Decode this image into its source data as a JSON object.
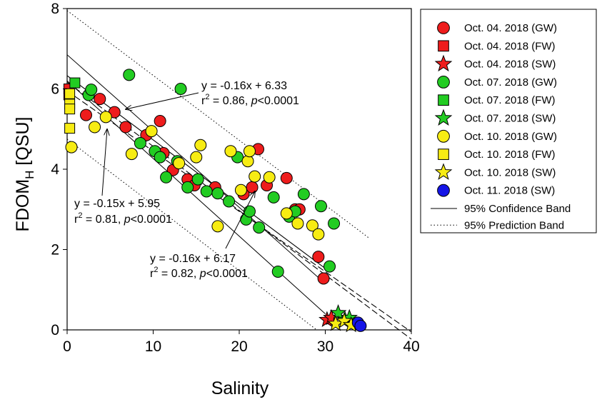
{
  "chart_data": {
    "type": "scatter",
    "xlabel": "Salinity",
    "ylabel_main": "FDOM",
    "ylabel_sub": "H",
    "ylabel_unit": " [QSU]",
    "xlim": [
      0,
      40
    ],
    "ylim": [
      0,
      8
    ],
    "xticks": [
      0,
      10,
      20,
      30,
      40
    ],
    "yticks": [
      0,
      2,
      4,
      6,
      8
    ],
    "grid": false,
    "legend_position": "right",
    "series": [
      {
        "name": "Oct. 04. 2018 (GW)",
        "marker": "circle",
        "color": "#ee1c1c",
        "points": [
          [
            2.2,
            5.35
          ],
          [
            3.8,
            5.75
          ],
          [
            5.5,
            5.42
          ],
          [
            6.8,
            5.05
          ],
          [
            9.2,
            4.85
          ],
          [
            10.8,
            5.2
          ],
          [
            11.2,
            4.4
          ],
          [
            12.3,
            3.98
          ],
          [
            14,
            3.75
          ],
          [
            14.8,
            3.6
          ],
          [
            17.2,
            3.55
          ],
          [
            20.5,
            3.38
          ],
          [
            21.5,
            3.55
          ],
          [
            22.2,
            4.5
          ],
          [
            23.2,
            3.6
          ],
          [
            25.5,
            3.78
          ],
          [
            26.5,
            3.0
          ],
          [
            27.0,
            3.0
          ],
          [
            29.2,
            1.82
          ],
          [
            29.8,
            1.28
          ]
        ]
      },
      {
        "name": "Oct. 04. 2018 (FW)",
        "marker": "square",
        "color": "#ee1c1c",
        "points": [
          [
            0.2,
            6.0
          ],
          [
            0.2,
            5.85
          ]
        ]
      },
      {
        "name": "Oct. 04. 2018 (SW)",
        "marker": "star",
        "color": "#ee1c1c",
        "points": [
          [
            30.2,
            0.25
          ],
          [
            30.7,
            0.3
          ]
        ]
      },
      {
        "name": "Oct. 07. 2018 (GW)",
        "marker": "circle",
        "color": "#22cc22",
        "points": [
          [
            2.5,
            5.85
          ],
          [
            2.8,
            5.98
          ],
          [
            7.2,
            6.35
          ],
          [
            8.5,
            4.65
          ],
          [
            10.2,
            4.45
          ],
          [
            10.8,
            4.3
          ],
          [
            11.5,
            3.8
          ],
          [
            12.8,
            4.2
          ],
          [
            13.2,
            6.0
          ],
          [
            14,
            3.55
          ],
          [
            15.2,
            3.75
          ],
          [
            16.2,
            3.45
          ],
          [
            17.5,
            3.4
          ],
          [
            18.8,
            3.2
          ],
          [
            19.8,
            4.3
          ],
          [
            20.8,
            2.75
          ],
          [
            21.2,
            2.95
          ],
          [
            22.3,
            2.55
          ],
          [
            24,
            3.3
          ],
          [
            24.5,
            1.45
          ],
          [
            25.8,
            2.82
          ],
          [
            26.5,
            2.95
          ],
          [
            27.5,
            3.38
          ],
          [
            29.5,
            3.08
          ],
          [
            30.5,
            1.58
          ],
          [
            31,
            2.65
          ]
        ]
      },
      {
        "name": "Oct. 07. 2018 (FW)",
        "marker": "square",
        "color": "#22cc22",
        "points": [
          [
            0.9,
            6.15
          ]
        ]
      },
      {
        "name": "Oct. 07. 2018 (SW)",
        "marker": "star",
        "color": "#22cc22",
        "points": [
          [
            31.5,
            0.42
          ],
          [
            32.3,
            0.25
          ],
          [
            32.8,
            0.3
          ]
        ]
      },
      {
        "name": "Oct. 10. 2018 (GW)",
        "marker": "circle",
        "color": "#f7ec13",
        "points": [
          [
            0.5,
            4.55
          ],
          [
            3.2,
            5.05
          ],
          [
            4.5,
            5.3
          ],
          [
            7.5,
            4.38
          ],
          [
            9.8,
            4.95
          ],
          [
            13,
            4.15
          ],
          [
            15.5,
            4.6
          ],
          [
            17.5,
            2.58
          ],
          [
            19,
            4.45
          ],
          [
            20.2,
            3.48
          ],
          [
            21,
            4.2
          ],
          [
            21.2,
            4.45
          ],
          [
            21.8,
            3.82
          ],
          [
            23.5,
            3.8
          ],
          [
            25.5,
            2.9
          ],
          [
            26.8,
            2.65
          ],
          [
            28.5,
            2.6
          ],
          [
            29.2,
            2.38
          ],
          [
            15,
            4.3
          ]
        ]
      },
      {
        "name": "Oct. 10. 2018 (FW)",
        "marker": "square",
        "color": "#f7ec13",
        "points": [
          [
            0.3,
            5.88
          ],
          [
            0.3,
            5.62
          ],
          [
            0.3,
            5.5
          ],
          [
            0.3,
            5.02
          ]
        ]
      },
      {
        "name": "Oct. 10. 2018 (SW)",
        "marker": "star",
        "color": "#f7ec13",
        "points": [
          [
            31.2,
            0.15
          ],
          [
            32.2,
            0.22
          ],
          [
            33,
            0.12
          ]
        ]
      },
      {
        "name": "Oct. 11. 2018 (SW)",
        "marker": "circle",
        "color": "#1515e6",
        "points": [
          [
            33.8,
            0.18
          ],
          [
            34.1,
            0.1
          ]
        ]
      }
    ],
    "fits": [
      {
        "slope": -0.16,
        "intercept": 6.33,
        "x_range": [
          0,
          30
        ],
        "style": "solid"
      },
      {
        "slope": -0.15,
        "intercept": 5.95,
        "x_range": [
          0,
          40
        ],
        "style": "dashed"
      },
      {
        "slope": -0.16,
        "intercept": 6.17,
        "x_range": [
          0,
          40
        ],
        "style": "dashed"
      }
    ],
    "confidence_band": [
      {
        "x": [
          0,
          30
        ],
        "y": [
          6.85,
          1.15
        ]
      },
      {
        "x": [
          0,
          30
        ],
        "y": [
          6.2,
          0.4
        ]
      }
    ],
    "prediction_band": [
      {
        "x": [
          0,
          35
        ],
        "y": [
          7.95,
          2.3
        ]
      },
      {
        "x": [
          0,
          29
        ],
        "y": [
          4.75,
          0
        ]
      }
    ],
    "legend_bands": [
      {
        "label": "95% Confidence Band",
        "style": "solid"
      },
      {
        "label": "95% Prediction Band",
        "style": "dotted"
      }
    ],
    "annotations": [
      {
        "eq": "y = -0.16x + 6.33",
        "r2_prefix": "r",
        "r2_sup": "2",
        "r2_rest": " = 0.86, ",
        "p_italic": "p",
        "p_rest": "<0.0001"
      },
      {
        "eq": "y = -0.15x + 5.95",
        "r2_prefix": "r",
        "r2_sup": "2",
        "r2_rest": " = 0.81, ",
        "p_italic": "p",
        "p_rest": "<0.0001"
      },
      {
        "eq": "y = -0.16x + 6.17",
        "r2_prefix": "r",
        "r2_sup": "2",
        "r2_rest": " = 0.82, ",
        "p_italic": "p",
        "p_rest": "<0.0001"
      }
    ]
  }
}
